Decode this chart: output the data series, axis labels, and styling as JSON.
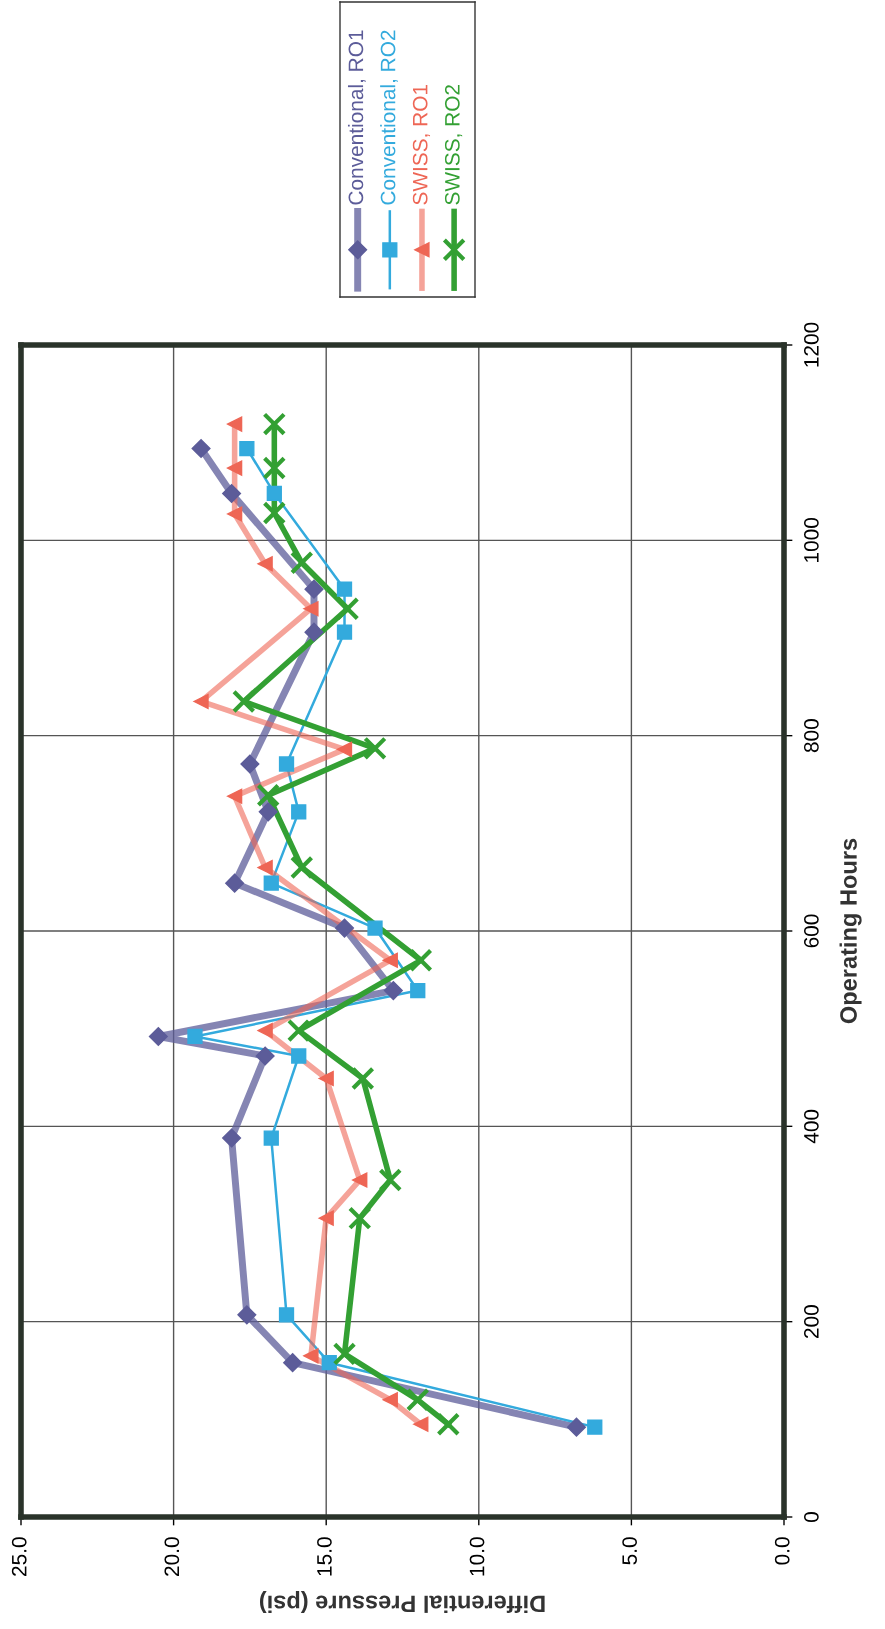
{
  "chart_data": {
    "type": "line",
    "xlabel": "Differential Pressure (psi)",
    "ylabel": "Operating Hours",
    "xlim": [
      25,
      0
    ],
    "xticks": [
      {
        "value": 25,
        "label": "25.0"
      },
      {
        "value": 20,
        "label": "20.0"
      },
      {
        "value": 15,
        "label": "15.0"
      },
      {
        "value": 10,
        "label": "10.0"
      },
      {
        "value": 5,
        "label": "5.0"
      },
      {
        "value": 0,
        "label": "0.0"
      }
    ],
    "ylim": [
      0,
      1200
    ],
    "yticks": [
      0,
      200,
      400,
      600,
      800,
      1000,
      1200
    ],
    "grid": true,
    "legend": "top",
    "series": [
      {
        "name": "Conventional, RO1",
        "color": "#5c5c99",
        "marker": "diamond",
        "values": [
          92,
          158,
          207,
          388,
          472,
          492,
          539,
          603,
          649,
          722,
          771,
          906,
          950,
          1048,
          1094
        ],
        "x": [
          6.8,
          16.1,
          17.6,
          18.1,
          17.0,
          20.5,
          12.8,
          14.4,
          18.0,
          16.9,
          17.5,
          15.4,
          15.4,
          18.1,
          19.1
        ]
      },
      {
        "name": "Conventional, RO2",
        "color": "#33aadd",
        "marker": "square",
        "values": [
          92,
          158,
          207,
          388,
          472,
          492,
          539,
          603,
          649,
          722,
          771,
          906,
          950,
          1048,
          1094
        ],
        "x": [
          6.2,
          14.9,
          16.3,
          16.8,
          15.9,
          19.3,
          12.0,
          13.4,
          16.8,
          15.9,
          16.3,
          14.4,
          14.4,
          16.7,
          17.6
        ]
      },
      {
        "name": "SWISS, RO1",
        "color": "#ee6655",
        "marker": "triangle",
        "values": [
          95,
          120,
          165,
          306,
          345,
          449,
          498,
          570,
          665,
          738,
          786,
          835,
          930,
          976,
          1027,
          1074,
          1119
        ],
        "x": [
          11.9,
          12.9,
          15.5,
          15.0,
          13.9,
          15.0,
          17.0,
          12.9,
          17.0,
          18.0,
          14.4,
          19.1,
          15.5,
          17.0,
          18.0,
          18.0,
          18.0
        ]
      },
      {
        "name": "SWISS, RO2",
        "color": "#33a033",
        "marker": "cross",
        "values": [
          95,
          120,
          167,
          306,
          345,
          449,
          498,
          570,
          665,
          739,
          787,
          835,
          930,
          977,
          1028,
          1074,
          1119
        ],
        "x": [
          11.0,
          12.0,
          14.4,
          13.9,
          12.9,
          13.8,
          15.9,
          11.9,
          15.8,
          16.9,
          13.4,
          17.7,
          14.3,
          15.8,
          16.7,
          16.7,
          16.7
        ]
      }
    ]
  }
}
